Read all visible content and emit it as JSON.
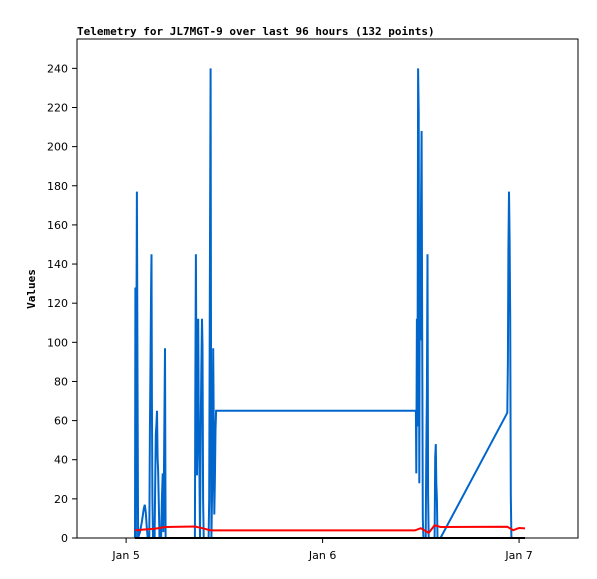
{
  "chart_data": {
    "type": "line",
    "title": "Telemetry for JL7MGT-9 over last 96 hours (132 points)",
    "ylabel": "Values",
    "xlabel": "",
    "xlim_hours": [
      -0.25,
      2.3
    ],
    "ylim": [
      0,
      255
    ],
    "yticks": [
      0,
      20,
      40,
      60,
      80,
      100,
      120,
      140,
      160,
      180,
      200,
      220,
      240
    ],
    "xticks": [
      {
        "label": "Jan 5",
        "hour": 0.0
      },
      {
        "label": "Jan 6",
        "hour": 1.0
      },
      {
        "label": "Jan 7",
        "hour": 2.0
      }
    ],
    "grid": false,
    "colors": {
      "series_blue": "#0066cc",
      "series_red": "#ff0000",
      "series_black": "#000000"
    },
    "series": [
      {
        "color": "#0066cc",
        "points": [
          [
            0.045,
            0
          ],
          [
            0.047,
            128
          ],
          [
            0.05,
            0
          ],
          [
            0.052,
            88
          ],
          [
            0.055,
            177
          ],
          [
            0.058,
            84
          ],
          [
            0.061,
            0
          ],
          [
            0.07,
            3
          ],
          [
            0.08,
            8
          ],
          [
            0.09,
            15
          ],
          [
            0.095,
            17
          ],
          [
            0.1,
            13
          ],
          [
            0.105,
            6
          ],
          [
            0.11,
            0
          ],
          [
            0.118,
            0
          ],
          [
            0.121,
            55
          ],
          [
            0.124,
            90
          ],
          [
            0.127,
            128
          ],
          [
            0.129,
            145
          ],
          [
            0.131,
            72
          ],
          [
            0.134,
            20
          ],
          [
            0.137,
            0
          ],
          [
            0.145,
            0
          ],
          [
            0.148,
            28
          ],
          [
            0.151,
            53
          ],
          [
            0.154,
            58
          ],
          [
            0.157,
            65
          ],
          [
            0.16,
            41
          ],
          [
            0.163,
            35
          ],
          [
            0.166,
            20
          ],
          [
            0.17,
            0
          ],
          [
            0.178,
            0
          ],
          [
            0.182,
            20
          ],
          [
            0.186,
            33
          ],
          [
            0.19,
            3
          ],
          [
            0.194,
            48
          ],
          [
            0.198,
            97
          ],
          [
            0.201,
            0
          ],
          [
            0.35,
            0
          ],
          [
            0.352,
            73
          ],
          [
            0.355,
            145
          ],
          [
            0.358,
            71
          ],
          [
            0.361,
            32
          ],
          [
            0.364,
            83
          ],
          [
            0.367,
            112
          ],
          [
            0.37,
            55
          ],
          [
            0.373,
            35
          ],
          [
            0.376,
            0
          ],
          [
            0.38,
            60
          ],
          [
            0.383,
            89
          ],
          [
            0.386,
            112
          ],
          [
            0.389,
            98
          ],
          [
            0.392,
            20
          ],
          [
            0.395,
            0
          ],
          [
            0.42,
            0
          ],
          [
            0.423,
            20
          ],
          [
            0.426,
            120
          ],
          [
            0.428,
            180
          ],
          [
            0.43,
            240
          ],
          [
            0.432,
            100
          ],
          [
            0.434,
            0
          ],
          [
            0.44,
            40
          ],
          [
            0.443,
            97
          ],
          [
            0.446,
            60
          ],
          [
            0.449,
            12
          ],
          [
            0.452,
            30
          ],
          [
            0.455,
            55
          ],
          [
            0.458,
            65
          ],
          [
            1.475,
            65
          ],
          [
            1.477,
            33
          ],
          [
            1.48,
            112
          ],
          [
            1.483,
            57
          ],
          [
            1.486,
            240
          ],
          [
            1.489,
            217
          ],
          [
            1.492,
            28
          ],
          [
            1.495,
            145
          ],
          [
            1.498,
            101
          ],
          [
            1.501,
            168
          ],
          [
            1.504,
            208
          ],
          [
            1.507,
            104
          ],
          [
            1.51,
            10
          ],
          [
            1.513,
            0
          ],
          [
            1.525,
            0
          ],
          [
            1.528,
            44
          ],
          [
            1.531,
            74
          ],
          [
            1.534,
            145
          ],
          [
            1.537,
            22
          ],
          [
            1.54,
            0
          ],
          [
            1.57,
            0
          ],
          [
            1.573,
            41
          ],
          [
            1.576,
            48
          ],
          [
            1.579,
            28
          ],
          [
            1.582,
            20
          ],
          [
            1.585,
            0
          ],
          [
            1.6,
            0
          ],
          [
            1.94,
            64
          ],
          [
            1.943,
            90
          ],
          [
            1.946,
            147
          ],
          [
            1.949,
            177
          ],
          [
            1.952,
            153
          ],
          [
            1.955,
            113
          ],
          [
            1.958,
            22
          ],
          [
            1.961,
            0
          ]
        ]
      },
      {
        "color": "#ff0000",
        "points": [
          [
            0.045,
            4
          ],
          [
            0.15,
            4.8
          ],
          [
            0.2,
            5.6
          ],
          [
            0.35,
            5.9
          ],
          [
            0.38,
            5.2
          ],
          [
            0.43,
            3.9
          ],
          [
            1.47,
            3.9
          ],
          [
            1.5,
            5.0
          ],
          [
            1.54,
            2.6
          ],
          [
            1.57,
            6.5
          ],
          [
            1.6,
            5.6
          ],
          [
            1.94,
            5.7
          ],
          [
            1.97,
            4.0
          ],
          [
            2.0,
            5.1
          ],
          [
            2.03,
            4.9
          ]
        ]
      },
      {
        "color": "#000000",
        "points": [
          [
            0.045,
            0
          ],
          [
            2.03,
            0
          ]
        ]
      }
    ]
  }
}
